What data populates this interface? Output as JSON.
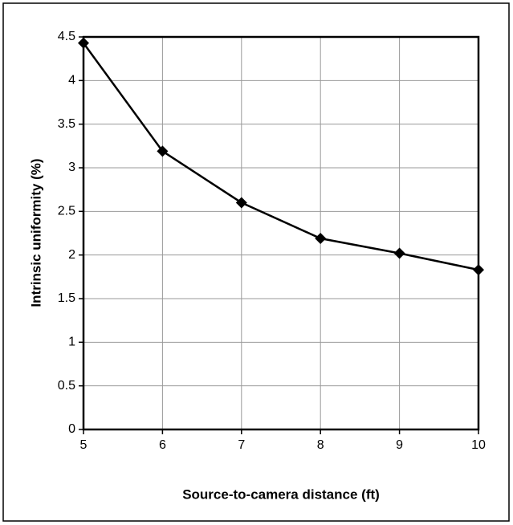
{
  "chart_data": {
    "type": "line",
    "x_label": "Source-to-camera distance (ft)",
    "y_label": "Intrinsic uniformity (%)",
    "x": [
      5,
      6,
      7,
      8,
      9,
      10
    ],
    "series": [
      {
        "name": "Intrinsic uniformity",
        "color": "#000000",
        "values": [
          4.43,
          3.19,
          2.6,
          2.19,
          2.02,
          1.83
        ]
      }
    ],
    "xlim": [
      5,
      10
    ],
    "xticks": [
      5,
      6,
      7,
      8,
      9,
      10
    ],
    "ylim": [
      0,
      4.5
    ],
    "yticks": [
      0,
      0.5,
      1,
      1.5,
      2,
      2.5,
      3,
      3.5,
      4,
      4.5
    ],
    "grid": true
  }
}
